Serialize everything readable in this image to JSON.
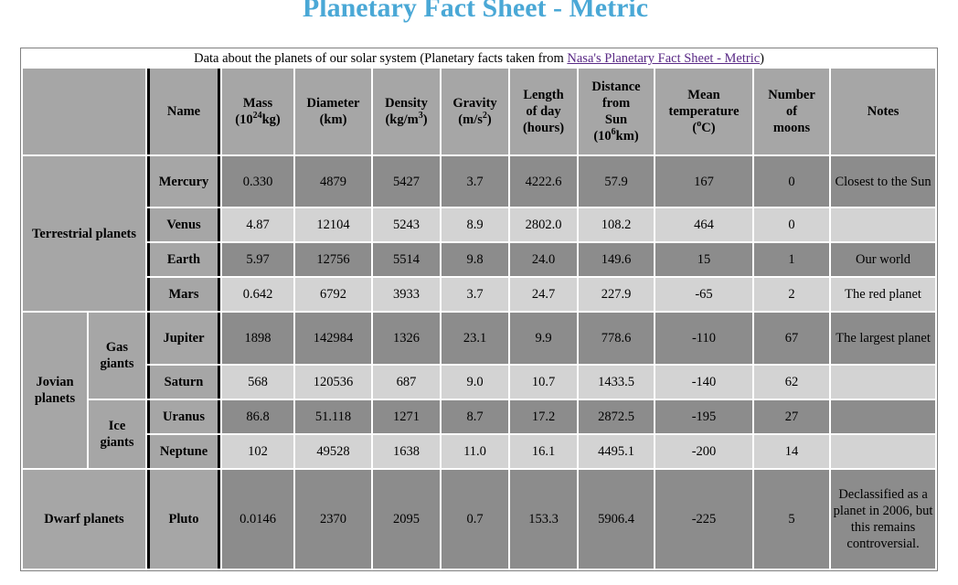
{
  "title": "Planetary Fact Sheet - Metric",
  "caption": {
    "prefix": "Data about the planets of our solar system (Planetary facts taken from ",
    "link_text": "Nasa's Planetary Fact Sheet - Metric",
    "suffix": ")"
  },
  "headers": {
    "name": "Name",
    "mass": "Mass",
    "mass_unit_pre": "(10",
    "mass_unit_sup": "24",
    "mass_unit_post": "kg)",
    "diameter": "Diameter",
    "diameter_unit": "(km)",
    "density": "Density",
    "density_unit_pre": "(kg/m",
    "density_unit_sup": "3",
    "density_unit_post": ")",
    "gravity": "Gravity",
    "gravity_unit_pre": "(m/s",
    "gravity_unit_sup": "2",
    "gravity_unit_post": ")",
    "length_of_day_1": "Length",
    "length_of_day_2": "of day",
    "length_of_day_3": "(hours)",
    "distance_1": "Distance",
    "distance_2": "from",
    "distance_3": "Sun",
    "distance_unit_pre": "(10",
    "distance_unit_sup": "6",
    "distance_unit_post": "km)",
    "temp_1": "Mean",
    "temp_2": "temperature",
    "temp_unit_pre": "(",
    "temp_unit_sup": "o",
    "temp_unit_post": "C)",
    "moons_1": "Number",
    "moons_2": "of",
    "moons_3": "moons",
    "notes": "Notes"
  },
  "groups": {
    "terrestrial": "Terrestrial planets",
    "jovian": "Jovian planets",
    "gas_giants": "Gas giants",
    "ice_giants": "Ice giants",
    "dwarf": "Dwarf planets"
  },
  "planets": [
    {
      "name": "Mercury",
      "mass": "0.330",
      "diameter": "4879",
      "density": "5427",
      "gravity": "3.7",
      "day": "4222.6",
      "distance": "57.9",
      "temp": "167",
      "moons": "0",
      "notes": "Closest to the Sun"
    },
    {
      "name": "Venus",
      "mass": "4.87",
      "diameter": "12104",
      "density": "5243",
      "gravity": "8.9",
      "day": "2802.0",
      "distance": "108.2",
      "temp": "464",
      "moons": "0",
      "notes": ""
    },
    {
      "name": "Earth",
      "mass": "5.97",
      "diameter": "12756",
      "density": "5514",
      "gravity": "9.8",
      "day": "24.0",
      "distance": "149.6",
      "temp": "15",
      "moons": "1",
      "notes": "Our world"
    },
    {
      "name": "Mars",
      "mass": "0.642",
      "diameter": "6792",
      "density": "3933",
      "gravity": "3.7",
      "day": "24.7",
      "distance": "227.9",
      "temp": "-65",
      "moons": "2",
      "notes": "The red planet"
    },
    {
      "name": "Jupiter",
      "mass": "1898",
      "diameter": "142984",
      "density": "1326",
      "gravity": "23.1",
      "day": "9.9",
      "distance": "778.6",
      "temp": "-110",
      "moons": "67",
      "notes": "The largest planet"
    },
    {
      "name": "Saturn",
      "mass": "568",
      "diameter": "120536",
      "density": "687",
      "gravity": "9.0",
      "day": "10.7",
      "distance": "1433.5",
      "temp": "-140",
      "moons": "62",
      "notes": ""
    },
    {
      "name": "Uranus",
      "mass": "86.8",
      "diameter": "51.118",
      "density": "1271",
      "gravity": "8.7",
      "day": "17.2",
      "distance": "2872.5",
      "temp": "-195",
      "moons": "27",
      "notes": ""
    },
    {
      "name": "Neptune",
      "mass": "102",
      "diameter": "49528",
      "density": "1638",
      "gravity": "11.0",
      "day": "16.1",
      "distance": "4495.1",
      "temp": "-200",
      "moons": "14",
      "notes": ""
    },
    {
      "name": "Pluto",
      "mass": "0.0146",
      "diameter": "2370",
      "density": "2095",
      "gravity": "0.7",
      "day": "153.3",
      "distance": "5906.4",
      "temp": "-225",
      "moons": "5",
      "notes": "Declassified as a planet in 2006, but this remains controversial."
    }
  ],
  "colors": {
    "title": "#4aa8d6",
    "header_bg": "#a6a6a6",
    "row_dark": "#8c8c8c",
    "row_light": "#d3d3d3",
    "link": "#5a2a86"
  }
}
